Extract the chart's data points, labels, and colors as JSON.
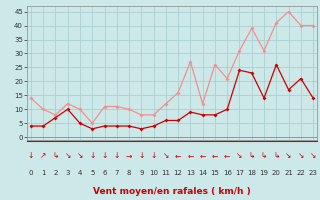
{
  "x": [
    0,
    1,
    2,
    3,
    4,
    5,
    6,
    7,
    8,
    9,
    10,
    11,
    12,
    13,
    14,
    15,
    16,
    17,
    18,
    19,
    20,
    21,
    22,
    23
  ],
  "mean_wind": [
    4,
    4,
    7,
    10,
    5,
    3,
    4,
    4,
    4,
    3,
    4,
    6,
    6,
    9,
    8,
    8,
    10,
    24,
    23,
    14,
    26,
    17,
    21,
    14
  ],
  "gust_wind": [
    14,
    10,
    8,
    12,
    10,
    5,
    11,
    11,
    10,
    8,
    8,
    12,
    16,
    27,
    12,
    26,
    21,
    31,
    39,
    31,
    41,
    45,
    40,
    40
  ],
  "bg_color": "#cce8e8",
  "grid_color": "#aacfcf",
  "mean_color": "#cc0000",
  "gust_color": "#f09090",
  "xlabel": "Vent moyen/en rafales ( km/h )",
  "xlabel_color": "#cc0000",
  "yticks": [
    0,
    5,
    10,
    15,
    20,
    25,
    30,
    35,
    40,
    45
  ],
  "xticks": [
    0,
    1,
    2,
    3,
    4,
    5,
    6,
    7,
    8,
    9,
    10,
    11,
    12,
    13,
    14,
    15,
    16,
    17,
    18,
    19,
    20,
    21,
    22,
    23
  ],
  "ylim": [
    -1,
    47
  ],
  "xlim": [
    -0.3,
    23.3
  ],
  "arrow_symbols": [
    "↓",
    "↗",
    "↳",
    "↘",
    "↘",
    "↓",
    "↓",
    "↓",
    "→",
    "↓",
    "↓",
    "↘",
    "←",
    "←",
    "←",
    "←",
    "←",
    "↘",
    "↳",
    "↳",
    "↳",
    "↘",
    "↘",
    "↘"
  ]
}
